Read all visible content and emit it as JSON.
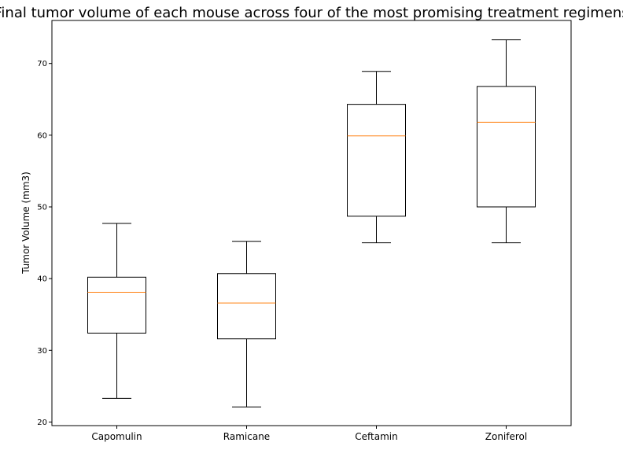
{
  "chart_data": {
    "type": "box",
    "title": "Final tumor volume of each mouse across four of the most promising treatment regimens",
    "xlabel": "",
    "ylabel": "Tumor Volume (mm3)",
    "ylim": [
      19.5,
      76.0
    ],
    "yticks": [
      20,
      30,
      40,
      50,
      60,
      70
    ],
    "ytick_labels": [
      "20",
      "30",
      "40",
      "50",
      "60",
      "70"
    ],
    "grid": false,
    "legend": false,
    "categories": [
      "Capomulin",
      "Ramicane",
      "Ceftamin",
      "Zoniferol"
    ],
    "boxes": [
      {
        "category": "Capomulin",
        "whisker_low": 23.3,
        "q1": 32.4,
        "median": 38.1,
        "q3": 40.2,
        "whisker_high": 47.7
      },
      {
        "category": "Ramicane",
        "whisker_low": 22.1,
        "q1": 31.6,
        "median": 36.6,
        "q3": 40.7,
        "whisker_high": 45.2
      },
      {
        "category": "Ceftamin",
        "whisker_low": 45.0,
        "q1": 48.7,
        "median": 59.9,
        "q3": 64.3,
        "whisker_high": 68.9
      },
      {
        "category": "Zoniferol",
        "whisker_low": 45.0,
        "q1": 50.0,
        "median": 61.8,
        "q3": 66.8,
        "whisker_high": 73.3
      }
    ],
    "colors": {
      "box": "#000000",
      "median": "#ff7f0e",
      "background": "#ffffff"
    }
  }
}
